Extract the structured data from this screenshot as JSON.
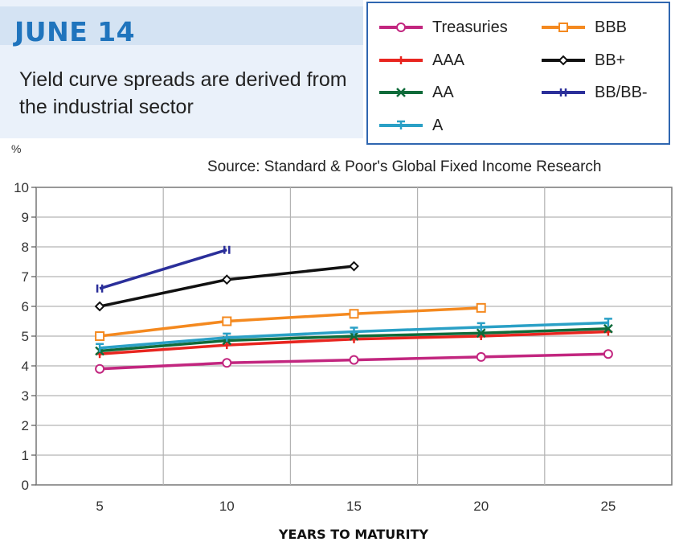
{
  "header": {
    "date": "JUNE 14",
    "subtitle": "Yield curve spreads are derived from the industrial sector"
  },
  "source": "Source: Standard & Poor's Global Fixed Income Research",
  "colors": {
    "Treasuries": "#c2267f",
    "AAA": "#e8251f",
    "AA": "#0f6b3a",
    "A": "#2aa0c6",
    "BBB": "#f4891f",
    "BB+": "#111111",
    "BB/BB-": "#2b2f9a"
  },
  "chart_data": {
    "type": "line",
    "ylabel": "%",
    "xlabel": "YEARS TO MATURITY",
    "ylim": [
      0,
      10
    ],
    "y_ticks": [
      0,
      1,
      2,
      3,
      4,
      5,
      6,
      7,
      8,
      9,
      10
    ],
    "x_ticks": [
      5,
      10,
      15,
      20,
      25
    ],
    "grid": true,
    "legend": "top-right",
    "series": [
      {
        "name": "Treasuries",
        "x": [
          5,
          10,
          15,
          20,
          25
        ],
        "values": [
          3.9,
          4.1,
          4.2,
          4.3,
          4.4
        ],
        "marker": "circle"
      },
      {
        "name": "AAA",
        "x": [
          5,
          10,
          15,
          20,
          25
        ],
        "values": [
          4.4,
          4.7,
          4.9,
          5.0,
          5.15
        ],
        "marker": "plus"
      },
      {
        "name": "AA",
        "x": [
          5,
          10,
          15,
          20,
          25
        ],
        "values": [
          4.5,
          4.85,
          5.0,
          5.1,
          5.25
        ],
        "marker": "cross"
      },
      {
        "name": "A",
        "x": [
          5,
          10,
          15,
          20,
          25
        ],
        "values": [
          4.6,
          4.95,
          5.15,
          5.3,
          5.45
        ],
        "marker": "tee"
      },
      {
        "name": "BBB",
        "x": [
          5,
          10,
          15,
          20
        ],
        "values": [
          5.0,
          5.5,
          5.75,
          5.95
        ],
        "marker": "square"
      },
      {
        "name": "BB+",
        "x": [
          5,
          10,
          15
        ],
        "values": [
          6.0,
          6.9,
          7.35
        ],
        "marker": "diamond"
      },
      {
        "name": "BB/BB-",
        "x": [
          5,
          10
        ],
        "values": [
          6.6,
          7.9
        ],
        "marker": "bar"
      }
    ]
  }
}
